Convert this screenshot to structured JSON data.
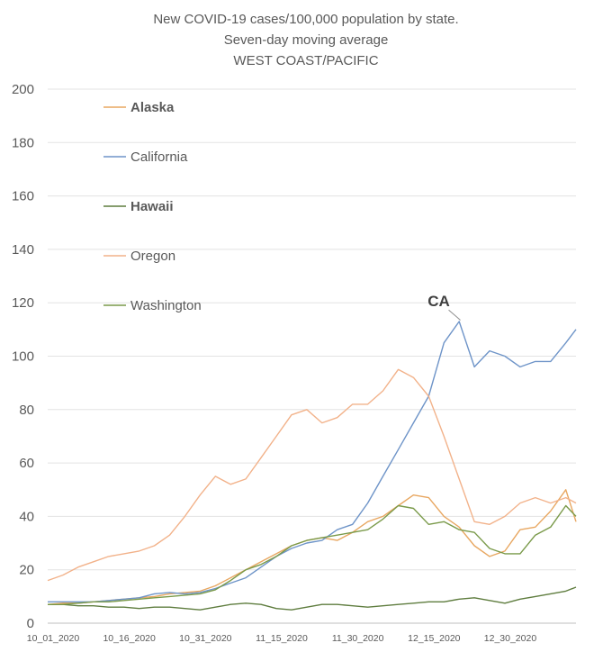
{
  "chart_data": {
    "type": "line",
    "title": [
      "New COVID-19 cases/100,000 population by state.",
      "Seven-day moving average",
      "WEST COAST/PACIFIC"
    ],
    "xlabel": "",
    "ylabel": "",
    "ylim": [
      0,
      200
    ],
    "yticks": [
      0,
      20,
      40,
      60,
      80,
      100,
      120,
      140,
      160,
      180,
      200
    ],
    "grid": true,
    "legend_position": "top-left inside",
    "x_start": "10_01_2020",
    "x_tick_labels": [
      "10_01_2020",
      "10_16_2020",
      "10_31_2020",
      "11_15_2020",
      "11_30_2020",
      "12_15_2020",
      "12_30_2020"
    ],
    "x_tick_days": [
      0,
      15,
      30,
      45,
      60,
      75,
      90
    ],
    "x_days": [
      0,
      3,
      6,
      9,
      12,
      15,
      18,
      21,
      24,
      27,
      30,
      33,
      36,
      39,
      42,
      45,
      48,
      51,
      54,
      57,
      60,
      63,
      66,
      69,
      72,
      75,
      78,
      81,
      84,
      87,
      90,
      93,
      96,
      99,
      102,
      104
    ],
    "series": [
      {
        "name": "Alaska",
        "bold": true,
        "color": "#e8a761",
        "values": [
          7,
          7.5,
          7.5,
          8,
          8.5,
          9,
          9.5,
          10,
          11,
          11.5,
          12,
          14,
          17,
          20,
          23,
          26,
          29,
          31,
          32,
          31,
          34,
          38,
          40,
          44,
          48,
          47,
          40,
          36,
          29,
          25,
          27,
          35,
          36,
          42,
          50,
          38
        ]
      },
      {
        "name": "California",
        "bold": false,
        "color": "#6e94c8",
        "values": [
          8,
          8,
          8,
          8,
          8.5,
          9,
          9.5,
          11,
          11.5,
          11,
          11.5,
          13,
          15,
          17,
          21,
          25,
          28,
          30,
          31,
          35,
          37,
          45,
          55,
          65,
          75,
          85,
          105,
          113,
          96,
          102,
          100,
          96,
          98,
          98,
          105,
          110
        ]
      },
      {
        "name": "Hawaii",
        "bold": true,
        "color": "#5f7d3f",
        "values": [
          7,
          7,
          6.5,
          6.5,
          6,
          6,
          5.5,
          6,
          6,
          5.5,
          5,
          6,
          7,
          7.5,
          7,
          5.5,
          5,
          6,
          7,
          7,
          6.5,
          6,
          6.5,
          7,
          7.5,
          8,
          8,
          9,
          9.5,
          8.5,
          7.5,
          9,
          10,
          11,
          12,
          13.5
        ]
      },
      {
        "name": "Oregon",
        "bold": false,
        "color": "#f2b28a",
        "values": [
          16,
          18,
          21,
          23,
          25,
          26,
          27,
          29,
          33,
          40,
          48,
          55,
          52,
          54,
          62,
          70,
          78,
          80,
          75,
          77,
          82,
          82,
          87,
          95,
          92,
          85,
          70,
          54,
          38,
          37,
          40,
          45,
          47,
          45,
          47,
          45
        ]
      },
      {
        "name": "Washington",
        "bold": false,
        "color": "#7a9a4a",
        "values": [
          7,
          7,
          7.5,
          8,
          8,
          8.5,
          9,
          9.5,
          10,
          10.5,
          11,
          12.5,
          16,
          20,
          22,
          25,
          29,
          31,
          32,
          33,
          34,
          35,
          39,
          44,
          43,
          37,
          38,
          35,
          34,
          28,
          26,
          26,
          33,
          36,
          44,
          40
        ]
      }
    ],
    "annotations": [
      {
        "text": "CA",
        "x_day": 80,
        "y": 120
      }
    ]
  }
}
